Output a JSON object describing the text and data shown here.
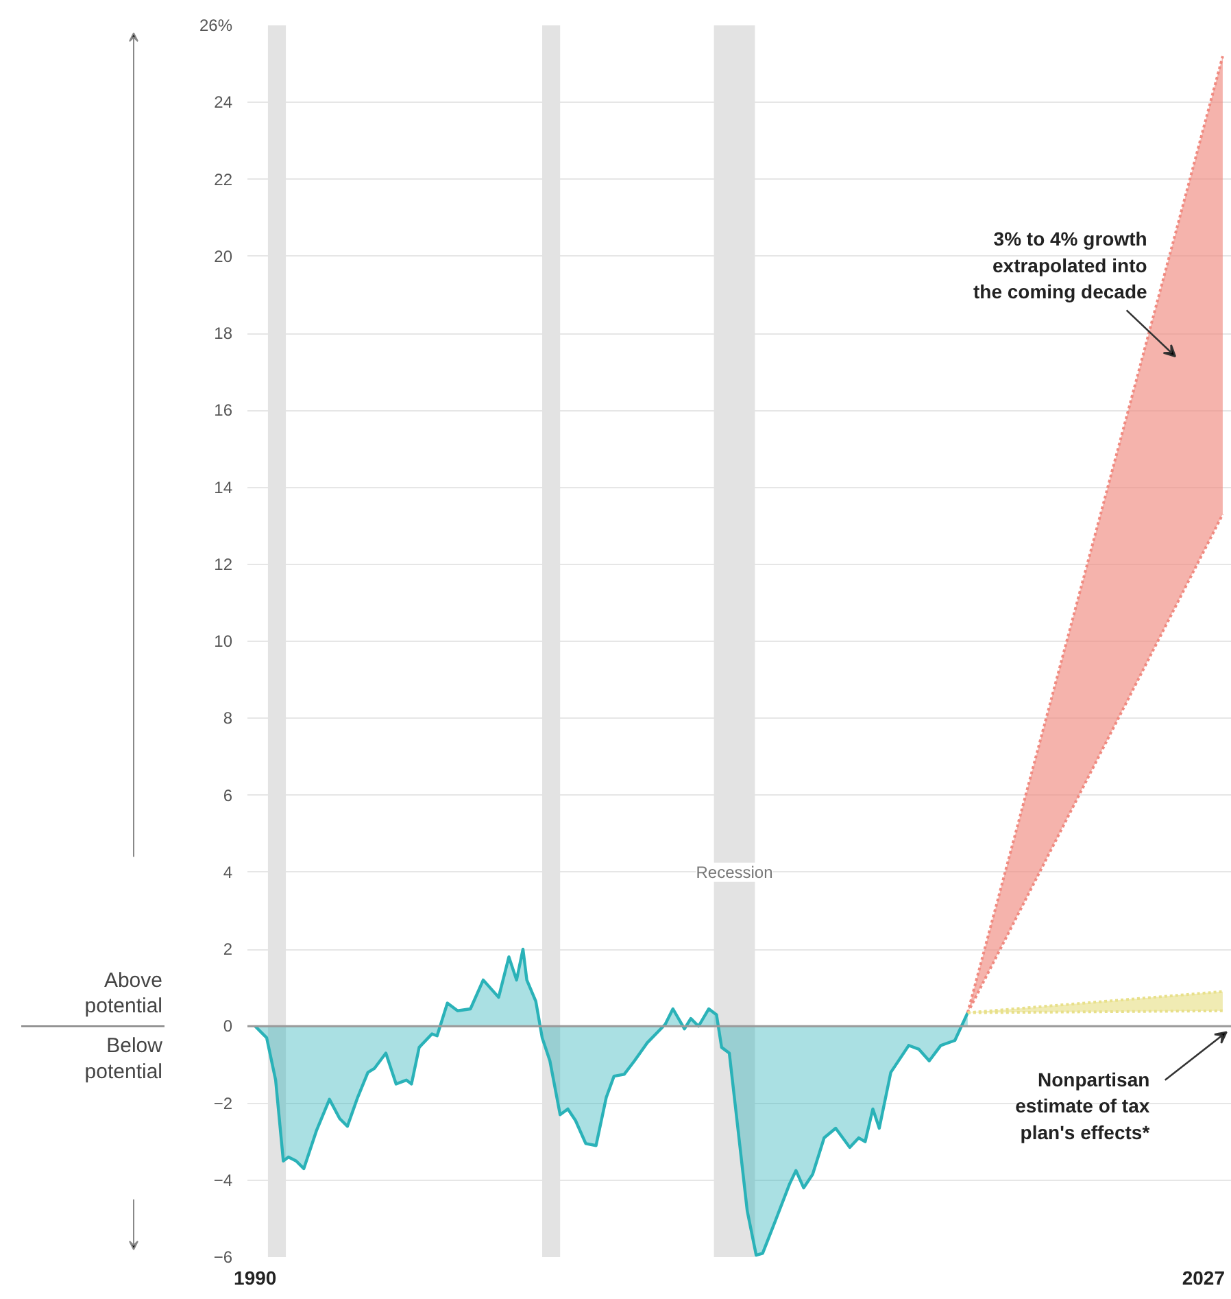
{
  "chart_data": {
    "type": "area",
    "xlim": [
      1989.7,
      2028.1
    ],
    "ylim": [
      -6,
      26
    ],
    "xticks": [
      1990,
      2027
    ],
    "yticks": [
      -6,
      -4,
      -2,
      0,
      2,
      4,
      6,
      8,
      10,
      12,
      14,
      16,
      18,
      20,
      22,
      24,
      {
        "value": 26,
        "label": "26%"
      }
    ],
    "grid": "y",
    "series": [
      {
        "color": "#2ab2b8",
        "x": [
          1990.0,
          1990.45,
          1990.8,
          1991.1,
          1991.3,
          1991.6,
          1991.9,
          1992.4,
          1992.9,
          1993.3,
          1993.6,
          1994.0,
          1994.4,
          1994.65,
          1995.1,
          1995.5,
          1995.9,
          1996.1,
          1996.4,
          1996.9,
          1997.1,
          1997.5,
          1997.9,
          1998.4,
          1998.9,
          1999.5,
          1999.9,
          2000.2,
          2000.45,
          2000.6,
          2000.95,
          2001.2,
          2001.5,
          2001.9,
          2002.2,
          2002.5,
          2002.9,
          2003.3,
          2003.7,
          2004.0,
          2004.4,
          2004.8,
          2005.3,
          2006.0,
          2006.3,
          2006.75,
          2007.0,
          2007.3,
          2007.7,
          2008.0,
          2008.2,
          2008.5,
          2008.8,
          2009.2,
          2009.55,
          2009.8,
          2010.3,
          2010.85,
          2011.1,
          2011.4,
          2011.75,
          2012.2,
          2012.65,
          2013.2,
          2013.55,
          2013.8,
          2014.1,
          2014.35,
          2014.8,
          2015.5,
          2015.9,
          2016.3,
          2016.75,
          2017.3,
          2017.8
        ],
        "values": [
          0,
          -0.3,
          -1.4,
          -3.5,
          -3.4,
          -3.5,
          -3.7,
          -2.7,
          -1.9,
          -2.4,
          -2.6,
          -1.85,
          -1.2,
          -1.1,
          -0.7,
          -1.5,
          -1.4,
          -1.5,
          -0.55,
          -0.2,
          -0.25,
          0.6,
          0.4,
          0.45,
          1.2,
          0.75,
          1.8,
          1.2,
          2.0,
          1.2,
          0.65,
          -0.3,
          -0.9,
          -2.3,
          -2.15,
          -2.45,
          -3.05,
          -3.1,
          -1.85,
          -1.3,
          -1.25,
          -0.9,
          -0.43,
          0.05,
          0.45,
          -0.07,
          0.2,
          0.0,
          0.45,
          0.3,
          -0.55,
          -0.7,
          -2.45,
          -4.8,
          -5.95,
          -5.9,
          -5.05,
          -4.1,
          -3.75,
          -4.2,
          -3.85,
          -2.9,
          -2.65,
          -3.15,
          -2.9,
          -3.0,
          -2.15,
          -2.65,
          -1.2,
          -0.5,
          -0.6,
          -0.9,
          -0.5,
          -0.37,
          0.35
        ]
      },
      {
        "type": "line",
        "color": "#f08a80",
        "line_style": "dotted",
        "x": [
          2017.8,
          2027.75
        ],
        "values": [
          0.35,
          25.2
        ],
        "lower": [
          0.35,
          13.3
        ],
        "upper": [
          0.35,
          25.2
        ]
      },
      {
        "type": "line",
        "color": "#f08a80",
        "line_style": "dotted",
        "x": [
          2017.8,
          2027.75
        ],
        "values": [
          0.35,
          13.3
        ]
      },
      {
        "type": "line",
        "color": "#e8e08a",
        "line_style": "dotted",
        "x": [
          2017.8,
          2027.75
        ],
        "values": [
          0.35,
          0.9
        ],
        "lower": [
          0.35,
          0.4
        ],
        "upper": [
          0.35,
          0.9
        ]
      },
      {
        "type": "line",
        "color": "#e8e08a",
        "line_style": "dotted",
        "x": [
          2017.8,
          2027.75
        ],
        "values": [
          0.35,
          0.4
        ]
      }
    ],
    "bands": [
      {
        "axis": "x",
        "from": 1990.5,
        "to": 1991.2,
        "color": "#e3e3e3"
      },
      {
        "axis": "x",
        "from": 2001.2,
        "to": 2001.9,
        "color": "#e3e3e3"
      },
      {
        "axis": "x",
        "from": 2007.9,
        "to": 2009.5,
        "color": "#e3e3e3",
        "label": "Recession"
      }
    ],
    "ref_lines": [
      {
        "axis": "y",
        "value": 0,
        "color": "#9a9a9a"
      }
    ],
    "annotations": [
      "3% to 4% growth\nextrapolated into\nthe coming decade",
      "Nonpartisan\nestimate of tax\nplan's effects*",
      "Above\npotential",
      "Below\npotential"
    ]
  }
}
